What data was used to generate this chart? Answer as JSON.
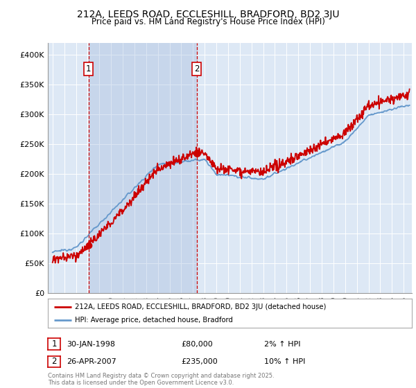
{
  "title_line1": "212A, LEEDS ROAD, ECCLESHILL, BRADFORD, BD2 3JU",
  "title_line2": "Price paid vs. HM Land Registry's House Price Index (HPI)",
  "background_color": "#dde8f5",
  "plot_bg_color": "#dde8f5",
  "legend_label_red": "212A, LEEDS ROAD, ECCLESHILL, BRADFORD, BD2 3JU (detached house)",
  "legend_label_blue": "HPI: Average price, detached house, Bradford",
  "annotation1_label": "1",
  "annotation1_date": "30-JAN-1998",
  "annotation1_price": "£80,000",
  "annotation1_hpi": "2% ↑ HPI",
  "annotation1_year": 1998.08,
  "annotation1_value": 80000,
  "annotation2_label": "2",
  "annotation2_date": "26-APR-2007",
  "annotation2_price": "£235,000",
  "annotation2_hpi": "10% ↑ HPI",
  "annotation2_year": 2007.32,
  "annotation2_value": 235000,
  "ylim_min": 0,
  "ylim_max": 420000,
  "copyright_text": "Contains HM Land Registry data © Crown copyright and database right 2025.\nThis data is licensed under the Open Government Licence v3.0.",
  "yticks": [
    0,
    50000,
    100000,
    150000,
    200000,
    250000,
    300000,
    350000,
    400000
  ],
  "ytick_labels": [
    "£0",
    "£50K",
    "£100K",
    "£150K",
    "£200K",
    "£250K",
    "£300K",
    "£350K",
    "£400K"
  ],
  "shade_color": "#ccd9ee",
  "red_line_color": "#cc0000",
  "blue_line_color": "#6699cc"
}
